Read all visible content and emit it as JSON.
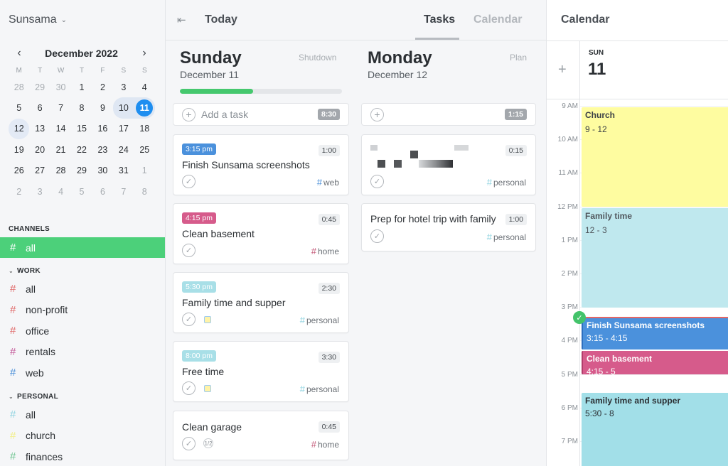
{
  "app": {
    "workspace": "Sunsama"
  },
  "mini_calendar": {
    "month_label": "December 2022",
    "weekdays": [
      "M",
      "T",
      "W",
      "T",
      "F",
      "S",
      "S"
    ],
    "days": [
      {
        "n": "28",
        "muted": true
      },
      {
        "n": "29",
        "muted": true
      },
      {
        "n": "30",
        "muted": true
      },
      {
        "n": "1"
      },
      {
        "n": "2"
      },
      {
        "n": "3"
      },
      {
        "n": "4"
      },
      {
        "n": "5"
      },
      {
        "n": "6"
      },
      {
        "n": "7"
      },
      {
        "n": "8"
      },
      {
        "n": "9"
      },
      {
        "n": "10",
        "selected": true
      },
      {
        "n": "11",
        "today": true
      },
      {
        "n": "12",
        "week": "first"
      },
      {
        "n": "13"
      },
      {
        "n": "14"
      },
      {
        "n": "15"
      },
      {
        "n": "16"
      },
      {
        "n": "17"
      },
      {
        "n": "18"
      },
      {
        "n": "19"
      },
      {
        "n": "20"
      },
      {
        "n": "21"
      },
      {
        "n": "22"
      },
      {
        "n": "23"
      },
      {
        "n": "24"
      },
      {
        "n": "25"
      },
      {
        "n": "26"
      },
      {
        "n": "27"
      },
      {
        "n": "28"
      },
      {
        "n": "29"
      },
      {
        "n": "30"
      },
      {
        "n": "31"
      },
      {
        "n": "1",
        "muted": true
      },
      {
        "n": "2",
        "muted": true
      },
      {
        "n": "3",
        "muted": true
      },
      {
        "n": "4",
        "muted": true
      },
      {
        "n": "5",
        "muted": true
      },
      {
        "n": "6",
        "muted": true
      },
      {
        "n": "7",
        "muted": true
      },
      {
        "n": "8",
        "muted": true
      }
    ]
  },
  "sidebar": {
    "channels_title": "CHANNELS",
    "all_channel": {
      "label": "all",
      "hash": "#"
    },
    "work_title": "WORK",
    "work_channels": [
      {
        "label": "all",
        "color": "#e06a6a"
      },
      {
        "label": "non-profit",
        "color": "#e06a6a"
      },
      {
        "label": "office",
        "color": "#e06a6a"
      },
      {
        "label": "rentals",
        "color": "#c45b9a"
      },
      {
        "label": "web",
        "color": "#4a8fd8"
      }
    ],
    "personal_title": "PERSONAL",
    "personal_channels": [
      {
        "label": "all",
        "color": "#8fd3e0"
      },
      {
        "label": "church",
        "color": "#f2ef8a"
      },
      {
        "label": "finances",
        "color": "#6cc48f"
      }
    ]
  },
  "header": {
    "title": "Today",
    "tabs": [
      "Tasks",
      "Calendar"
    ]
  },
  "sunday": {
    "name": "Sunday",
    "date": "December 11",
    "action": "Shutdown",
    "progress": 0.45,
    "add_label": "Add a task",
    "total": "8:30",
    "tasks": [
      {
        "time": "3:15 pm",
        "time_color": "#4b91dc",
        "dur": "1:00",
        "name": "Finish Sunsama screenshots",
        "tag": "web",
        "tag_color": "#4a8fd8"
      },
      {
        "time": "4:15 pm",
        "time_color": "#d65b8b",
        "dur": "0:45",
        "name": "Clean basement",
        "tag": "home",
        "tag_color": "#c45b7a"
      },
      {
        "time": "5:30 pm",
        "time_color": "#a8dfe7",
        "dur": "2:30",
        "name": "Family time and supper",
        "tag": "personal",
        "tag_color": "#8fd3e0"
      },
      {
        "time": "8:00 pm",
        "time_color": "#a8dfe7",
        "dur": "3:30",
        "name": "Free time",
        "tag": "personal",
        "tag_color": "#8fd3e0"
      },
      {
        "dur": "0:45",
        "name": "Clean garage",
        "tag": "home",
        "tag_color": "#c45b7a",
        "sub_icon": "1/2"
      }
    ]
  },
  "monday": {
    "name": "Monday",
    "date": "December 12",
    "action": "Plan",
    "total": "1:15",
    "tasks": [
      {
        "dur": "0:15",
        "tag": "personal",
        "tag_color": "#8fd3e0"
      },
      {
        "dur": "1:00",
        "name": "Prep for hotel trip with family",
        "tag": "personal",
        "tag_color": "#8fd3e0"
      }
    ]
  },
  "calendar_panel": {
    "title": "Calendar",
    "day_label": "SUN",
    "day_number": "11",
    "hours": [
      "9 AM",
      "10 AM",
      "11 AM",
      "12 PM",
      "1 PM",
      "2 PM",
      "3 PM",
      "4 PM",
      "5 PM",
      "6 PM",
      "7 PM"
    ],
    "events": [
      {
        "title": "Church",
        "range": "9 - 12"
      },
      {
        "title": "Family time",
        "range": "12 - 3"
      },
      {
        "title": "Finish Sunsama screenshots",
        "range": "3:15 - 4:15"
      },
      {
        "title": "Clean basement",
        "range": "4:15 - 5"
      },
      {
        "title": "Family time and supper",
        "range": "5:30 - 8"
      }
    ]
  }
}
